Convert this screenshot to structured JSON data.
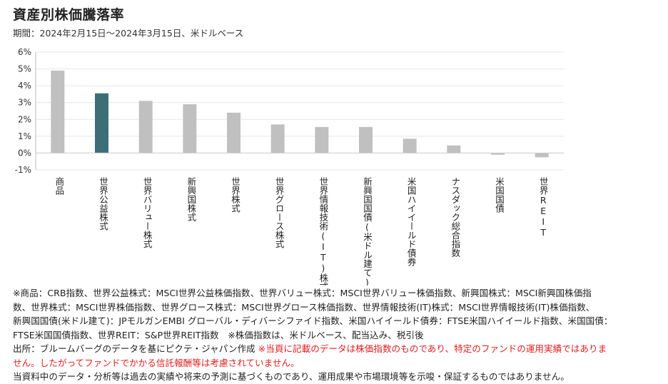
{
  "title": "資産別株価騰落率",
  "subtitle": "期間：2024年2月15日～2024年3月15日、米ドルベース",
  "chart_data": {
    "type": "bar",
    "categories": [
      "商品",
      "世界公益株式",
      "世界バリュー株式",
      "新興国株式",
      "世界株式",
      "世界グロース株式",
      "世界情報技術(IT)株式",
      "新興国国債(米ドル建て)",
      "米国ハイイールド債券",
      "ナスダック総合指数",
      "米国国債",
      "世界REIT"
    ],
    "values": [
      4.9,
      3.55,
      3.1,
      2.9,
      2.4,
      1.7,
      1.55,
      1.55,
      0.85,
      0.45,
      -0.1,
      -0.25
    ],
    "highlight_index": 1,
    "colors": {
      "bar": "#c0c0c0",
      "highlight": "#3d6e78",
      "grid": "#e6e6e6",
      "axis": "#bdbdbd"
    },
    "ylim": [
      -1,
      6
    ],
    "yticks": [
      -1,
      0,
      1,
      2,
      3,
      4,
      5,
      6
    ],
    "ytick_labels": [
      "-1%",
      "0%",
      "1%",
      "2%",
      "3%",
      "4%",
      "5%",
      "6%"
    ],
    "grid": true
  },
  "notes": {
    "line1": "※商品：CRB指数、世界公益株式：MSCI世界公益株価指数、世界バリュー株式：MSCI世界バリュー株価指数、新興国株式：MSCI新興国株価指",
    "line2": "数、世界株式：MSCI世界株価指数、世界グロース株式：MSCI世界グロース株価指数、世界情報技術(IT)株式：MSCI世界情報技術(IT)株価指数、",
    "line3": "新興国国債(米ドル建て)：JPモルガンEMBI グローバル・ディバーシファイド指数、米国ハイイールド債券：FTSE米国ハイイールド指数、米国国債：",
    "line4": "FTSE米国国債指数、世界REIT：S&P世界REIT指数　※株価指数は、米ドルベース、配当込み、税引後",
    "line5a": "出所：ブルームバーグのデータを基にピクテ・ジャパン作成",
    "line5b": "※当頁に記載のデータは株価指数のものであり、特定のファンドの運用実績ではありま",
    "line6": "せん。したがってファンドでかかる信託報酬等は考慮されていません。",
    "line7": "当資料中のデータ・分析等は過去の実績や将来の予測に基づくものであり、運用成果や市場環境等を示唆・保証するものではありません。"
  }
}
